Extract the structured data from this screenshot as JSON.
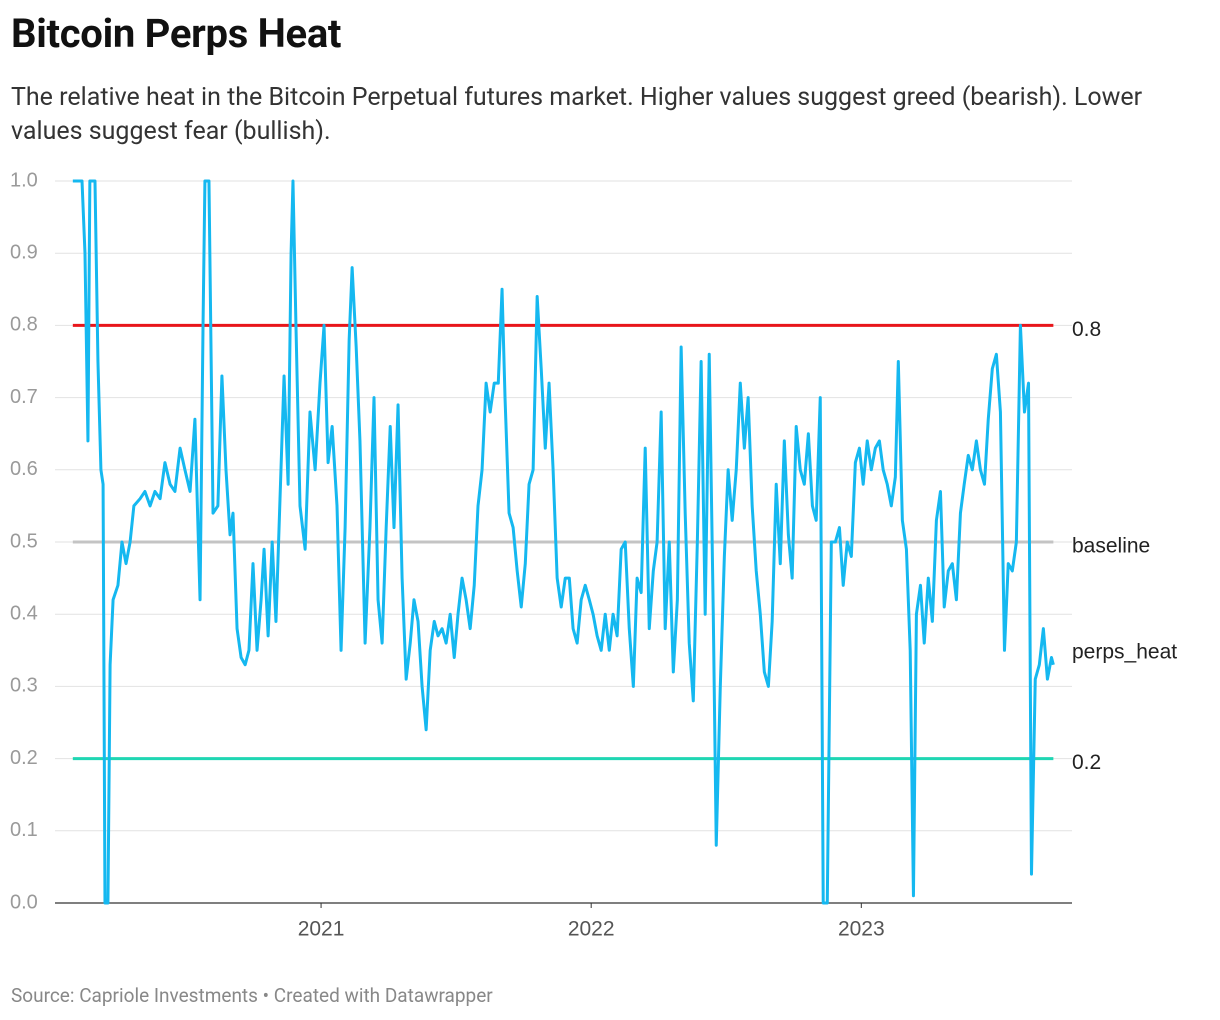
{
  "chart_data": {
    "type": "line",
    "title": "Bitcoin Perps Heat",
    "subtitle": "The relative heat in the Bitcoin Perpetual futures market. Higher values suggest greed (bearish). Lower values suggest fear (bullish).",
    "source": "Source: Capriole Investments • Created with Datawrapper",
    "xlim": [
      2020.015,
      2023.78
    ],
    "xticks": [
      2021,
      2022,
      2023
    ],
    "ylim": [
      0,
      1
    ],
    "yticks": [
      {
        "value": 0,
        "label": "0.0"
      },
      0.1,
      0.2,
      0.3,
      0.4,
      0.5,
      0.6,
      0.7,
      0.8,
      0.9,
      {
        "value": 1,
        "label": "1.0"
      }
    ],
    "grid": true,
    "reference_lines": [
      {
        "value": 0.8,
        "color": "#e8161b"
      },
      {
        "name": "baseline",
        "value": 0.5,
        "color": "#c4c4c4"
      },
      {
        "value": 0.2,
        "color": "#1fd6b3"
      }
    ],
    "x": [
      2020.081,
      2020.115,
      2020.126,
      2020.137,
      2020.144,
      2020.163,
      2020.174,
      2020.185,
      2020.193,
      2020.2,
      2020.211,
      2020.219,
      2020.23,
      2020.248,
      2020.263,
      2020.278,
      2020.293,
      2020.307,
      2020.33,
      2020.348,
      2020.367,
      2020.385,
      2020.404,
      2020.422,
      2020.441,
      2020.459,
      2020.478,
      2020.496,
      2020.515,
      2020.533,
      2020.552,
      2020.563,
      2020.57,
      2020.585,
      2020.6,
      2020.618,
      2020.633,
      2020.648,
      2020.663,
      2020.674,
      2020.689,
      2020.704,
      2020.719,
      2020.733,
      2020.748,
      2020.763,
      2020.778,
      2020.789,
      2020.804,
      2020.819,
      2020.833,
      2020.848,
      2020.863,
      2020.878,
      2020.889,
      2020.896,
      2020.907,
      2020.922,
      2020.941,
      2020.959,
      2020.978,
      2020.996,
      2021.011,
      2021.026,
      2021.041,
      2021.059,
      2021.074,
      2021.089,
      2021.104,
      2021.115,
      2021.13,
      2021.144,
      2021.163,
      2021.181,
      2021.196,
      2021.211,
      2021.226,
      2021.241,
      2021.256,
      2021.27,
      2021.285,
      2021.3,
      2021.315,
      2021.33,
      2021.344,
      2021.359,
      2021.374,
      2021.389,
      2021.404,
      2021.419,
      2021.433,
      2021.448,
      2021.463,
      2021.478,
      2021.493,
      2021.507,
      2021.522,
      2021.537,
      2021.552,
      2021.567,
      2021.581,
      2021.596,
      2021.611,
      2021.626,
      2021.641,
      2021.656,
      2021.67,
      2021.681,
      2021.696,
      2021.711,
      2021.726,
      2021.741,
      2021.756,
      2021.77,
      2021.785,
      2021.8,
      2021.815,
      2021.83,
      2021.844,
      2021.859,
      2021.874,
      2021.889,
      2021.904,
      2021.919,
      2021.933,
      2021.948,
      2021.963,
      2021.978,
      2021.993,
      2022.007,
      2022.022,
      2022.037,
      2022.052,
      2022.067,
      2022.081,
      2022.096,
      2022.111,
      2022.126,
      2022.141,
      2022.156,
      2022.17,
      2022.185,
      2022.2,
      2022.215,
      2022.23,
      2022.244,
      2022.259,
      2022.274,
      2022.289,
      2022.304,
      2022.319,
      2022.333,
      2022.348,
      2022.363,
      2022.378,
      2022.393,
      2022.407,
      2022.422,
      2022.437,
      2022.452,
      2022.463,
      2022.478,
      2022.493,
      2022.507,
      2022.522,
      2022.537,
      2022.552,
      2022.567,
      2022.581,
      2022.596,
      2022.611,
      2022.626,
      2022.641,
      2022.656,
      2022.67,
      2022.685,
      2022.7,
      2022.715,
      2022.73,
      2022.744,
      2022.759,
      2022.774,
      2022.789,
      2022.804,
      2022.819,
      2022.833,
      2022.848,
      2022.859,
      2022.874,
      2022.889,
      2022.904,
      2022.919,
      2022.933,
      2022.948,
      2022.963,
      2022.978,
      2022.993,
      2023.007,
      2023.022,
      2023.037,
      2023.052,
      2023.067,
      2023.081,
      2023.096,
      2023.111,
      2023.126,
      2023.137,
      2023.152,
      2023.167,
      2023.181,
      2023.193,
      2023.204,
      2023.219,
      2023.233,
      2023.248,
      2023.263,
      2023.278,
      2023.293,
      2023.307,
      2023.322,
      2023.337,
      2023.352,
      2023.367,
      2023.381,
      2023.396,
      2023.411,
      2023.426,
      2023.441,
      2023.456,
      2023.47,
      2023.485,
      2023.5,
      2023.515,
      2023.53,
      2023.544,
      2023.559,
      2023.574,
      2023.589,
      2023.604,
      2023.619,
      2023.63,
      2023.644,
      2023.659,
      2023.674,
      2023.689,
      2023.704,
      2023.711
    ],
    "series": [
      {
        "name": "perps_heat",
        "color": "#15b8f0",
        "values": [
          1.0,
          1.0,
          0.9,
          0.64,
          1.0,
          1.0,
          0.75,
          0.6,
          0.58,
          0.0,
          0.0,
          0.33,
          0.42,
          0.44,
          0.5,
          0.47,
          0.5,
          0.55,
          0.56,
          0.57,
          0.55,
          0.57,
          0.56,
          0.61,
          0.58,
          0.57,
          0.63,
          0.6,
          0.57,
          0.67,
          0.42,
          0.8,
          1.0,
          1.0,
          0.54,
          0.55,
          0.73,
          0.6,
          0.51,
          0.54,
          0.38,
          0.34,
          0.33,
          0.35,
          0.47,
          0.35,
          0.42,
          0.49,
          0.37,
          0.5,
          0.39,
          0.56,
          0.73,
          0.58,
          0.9,
          1.0,
          0.8,
          0.55,
          0.49,
          0.68,
          0.6,
          0.72,
          0.8,
          0.61,
          0.66,
          0.55,
          0.35,
          0.52,
          0.78,
          0.88,
          0.77,
          0.64,
          0.36,
          0.52,
          0.7,
          0.42,
          0.36,
          0.52,
          0.66,
          0.52,
          0.69,
          0.45,
          0.31,
          0.36,
          0.42,
          0.39,
          0.3,
          0.24,
          0.35,
          0.39,
          0.37,
          0.38,
          0.36,
          0.4,
          0.34,
          0.4,
          0.45,
          0.42,
          0.38,
          0.44,
          0.55,
          0.6,
          0.72,
          0.68,
          0.72,
          0.72,
          0.85,
          0.7,
          0.54,
          0.52,
          0.46,
          0.41,
          0.47,
          0.58,
          0.6,
          0.84,
          0.74,
          0.63,
          0.72,
          0.6,
          0.45,
          0.41,
          0.45,
          0.45,
          0.38,
          0.36,
          0.42,
          0.44,
          0.42,
          0.4,
          0.37,
          0.35,
          0.4,
          0.35,
          0.4,
          0.37,
          0.49,
          0.5,
          0.38,
          0.3,
          0.45,
          0.43,
          0.63,
          0.38,
          0.46,
          0.5,
          0.68,
          0.38,
          0.5,
          0.32,
          0.42,
          0.77,
          0.54,
          0.36,
          0.28,
          0.5,
          0.75,
          0.4,
          0.76,
          0.4,
          0.08,
          0.3,
          0.48,
          0.6,
          0.53,
          0.6,
          0.72,
          0.63,
          0.7,
          0.55,
          0.46,
          0.4,
          0.32,
          0.3,
          0.39,
          0.58,
          0.47,
          0.64,
          0.51,
          0.45,
          0.66,
          0.6,
          0.58,
          0.65,
          0.55,
          0.53,
          0.7,
          0.0,
          0.0,
          0.5,
          0.5,
          0.52,
          0.44,
          0.5,
          0.48,
          0.61,
          0.63,
          0.58,
          0.64,
          0.6,
          0.63,
          0.64,
          0.6,
          0.58,
          0.55,
          0.59,
          0.75,
          0.53,
          0.49,
          0.35,
          0.01,
          0.4,
          0.44,
          0.36,
          0.45,
          0.39,
          0.53,
          0.57,
          0.41,
          0.46,
          0.47,
          0.42,
          0.54,
          0.58,
          0.62,
          0.6,
          0.64,
          0.6,
          0.58,
          0.67,
          0.74,
          0.76,
          0.68,
          0.35,
          0.47,
          0.46,
          0.5,
          0.8,
          0.68,
          0.72,
          0.04,
          0.31,
          0.33,
          0.38,
          0.31,
          0.34,
          0.33
        ]
      }
    ]
  }
}
